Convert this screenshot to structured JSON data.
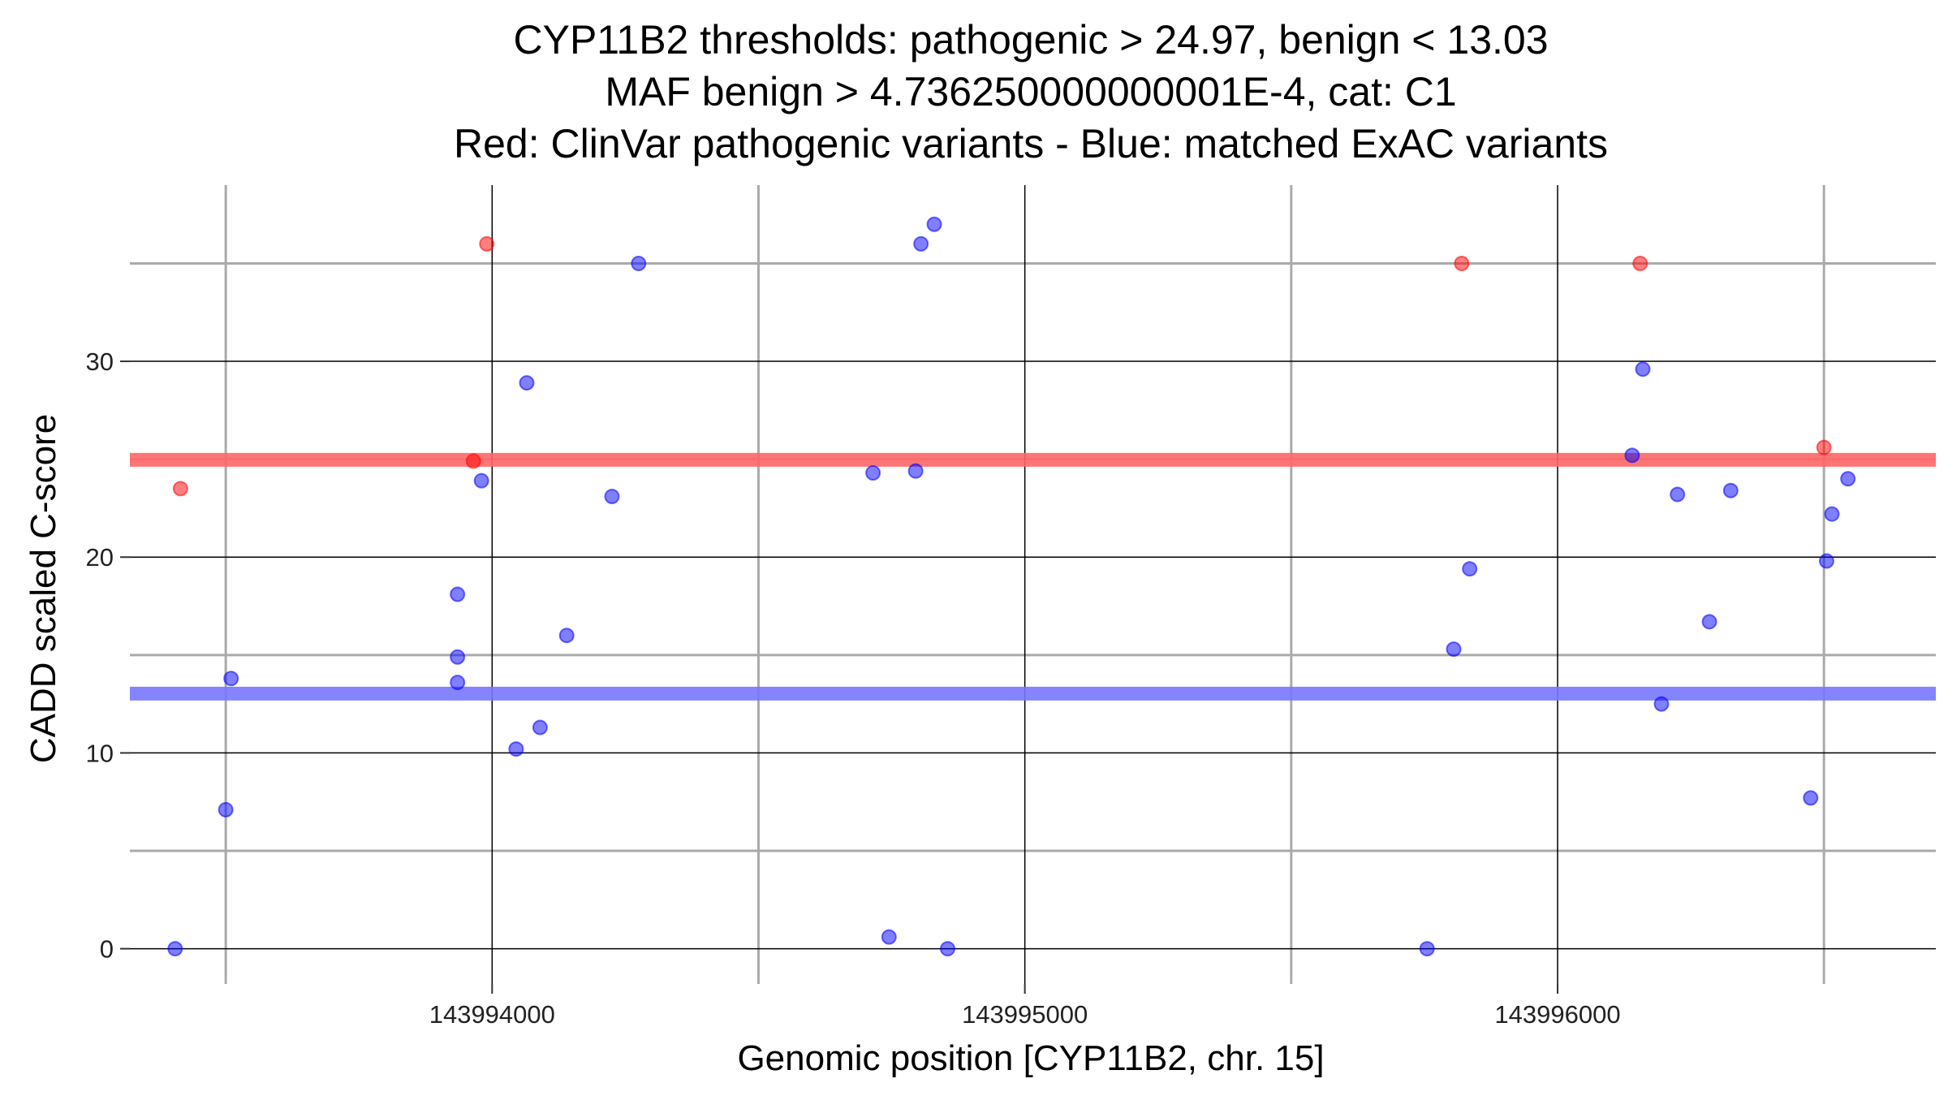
{
  "chart_data": {
    "type": "scatter",
    "title_lines": [
      "CYP11B2 thresholds: pathogenic > 24.97, benign < 13.03",
      "MAF benign > 4.736250000000001E-4, cat: C1",
      "Red: ClinVar pathogenic variants - Blue: matched ExAC variants"
    ],
    "xlabel": "Genomic position [CYP11B2, chr. 15]",
    "ylabel": "CADD scaled C-score",
    "xlim": [
      143993320,
      143996710
    ],
    "ylim": [
      -1.8,
      39
    ],
    "x_major_ticks": [
      143994000,
      143995000,
      143996000
    ],
    "x_tick_labels": [
      "143994000",
      "143995000",
      "143996000"
    ],
    "x_minor_ticks": [
      143993500,
      143994500,
      143995500,
      143996500
    ],
    "y_major_ticks": [
      0,
      10,
      20,
      30
    ],
    "y_tick_labels": [
      "0",
      "10",
      "20",
      "30"
    ],
    "y_minor_ticks": [
      5,
      15,
      25,
      35
    ],
    "grid": true,
    "thresholds": [
      {
        "value": 24.97,
        "color": "#ff6666"
      },
      {
        "value": 13.03,
        "color": "#7777ff"
      }
    ],
    "series": [
      {
        "color": "#ff0000",
        "points": [
          {
            "x": 143993415,
            "y": 23.5
          },
          {
            "x": 143993990,
            "y": 36
          },
          {
            "x": 143993965,
            "y": 24.9
          },
          {
            "x": 143995820,
            "y": 35
          },
          {
            "x": 143996155,
            "y": 35
          },
          {
            "x": 143996500,
            "y": 25.6
          }
        ]
      },
      {
        "color": "#0000ff",
        "points": [
          {
            "x": 143993405,
            "y": 0
          },
          {
            "x": 143993500,
            "y": 7.1
          },
          {
            "x": 143993510,
            "y": 13.8
          },
          {
            "x": 143993935,
            "y": 18.1
          },
          {
            "x": 143993935,
            "y": 14.9
          },
          {
            "x": 143993935,
            "y": 13.6
          },
          {
            "x": 143993980,
            "y": 23.9
          },
          {
            "x": 143994045,
            "y": 10.2
          },
          {
            "x": 143994065,
            "y": 28.9
          },
          {
            "x": 143994090,
            "y": 11.3
          },
          {
            "x": 143994140,
            "y": 16
          },
          {
            "x": 143994225,
            "y": 23.1
          },
          {
            "x": 143994275,
            "y": 35
          },
          {
            "x": 143994715,
            "y": 24.3
          },
          {
            "x": 143994745,
            "y": 0.6
          },
          {
            "x": 143994795,
            "y": 24.4
          },
          {
            "x": 143994805,
            "y": 36
          },
          {
            "x": 143994830,
            "y": 37
          },
          {
            "x": 143994855,
            "y": 0
          },
          {
            "x": 143995755,
            "y": 0
          },
          {
            "x": 143995805,
            "y": 15.3
          },
          {
            "x": 143995835,
            "y": 19.4
          },
          {
            "x": 143996140,
            "y": 25.2
          },
          {
            "x": 143996160,
            "y": 29.6
          },
          {
            "x": 143996195,
            "y": 12.5
          },
          {
            "x": 143996225,
            "y": 23.2
          },
          {
            "x": 143996285,
            "y": 16.7
          },
          {
            "x": 143996325,
            "y": 23.4
          },
          {
            "x": 143996475,
            "y": 7.7
          },
          {
            "x": 143996505,
            "y": 19.8
          },
          {
            "x": 143996515,
            "y": 22.2
          },
          {
            "x": 143996545,
            "y": 24
          }
        ]
      }
    ]
  }
}
